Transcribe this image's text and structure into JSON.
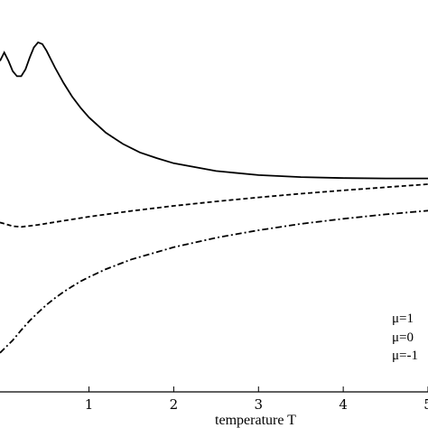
{
  "chart_data": {
    "type": "line",
    "title": "",
    "xlabel": "temperature T",
    "ylabel": "",
    "xlim": [
      -0.05,
      5.0
    ],
    "ylim": [
      0,
      1
    ],
    "x_ticks": [
      1,
      2,
      3,
      4,
      5
    ],
    "x_tick_labels": [
      "1",
      "2",
      "3",
      "4",
      "5"
    ],
    "grid": false,
    "legend_position": "bottom-right",
    "series": [
      {
        "name": "μ=1",
        "style": "solid",
        "points": [
          [
            -0.05,
            0.9
          ],
          [
            0.0,
            0.925
          ],
          [
            0.05,
            0.9
          ],
          [
            0.1,
            0.87
          ],
          [
            0.15,
            0.855
          ],
          [
            0.2,
            0.855
          ],
          [
            0.25,
            0.875
          ],
          [
            0.3,
            0.91
          ],
          [
            0.35,
            0.94
          ],
          [
            0.4,
            0.955
          ],
          [
            0.45,
            0.95
          ],
          [
            0.5,
            0.93
          ],
          [
            0.6,
            0.88
          ],
          [
            0.7,
            0.835
          ],
          [
            0.8,
            0.795
          ],
          [
            0.9,
            0.762
          ],
          [
            1.0,
            0.733
          ],
          [
            1.2,
            0.688
          ],
          [
            1.4,
            0.655
          ],
          [
            1.6,
            0.63
          ],
          [
            1.8,
            0.613
          ],
          [
            2.0,
            0.598
          ],
          [
            2.5,
            0.575
          ],
          [
            3.0,
            0.563
          ],
          [
            3.5,
            0.557
          ],
          [
            4.0,
            0.554
          ],
          [
            4.5,
            0.553
          ],
          [
            5.0,
            0.553
          ]
        ]
      },
      {
        "name": "μ=0",
        "style": "dashed",
        "points": [
          [
            -0.05,
            0.423
          ],
          [
            0.1,
            0.412
          ],
          [
            0.2,
            0.41
          ],
          [
            0.4,
            0.416
          ],
          [
            0.6,
            0.424
          ],
          [
            0.8,
            0.432
          ],
          [
            1.0,
            0.44
          ],
          [
            1.5,
            0.457
          ],
          [
            2.0,
            0.472
          ],
          [
            2.5,
            0.485
          ],
          [
            3.0,
            0.497
          ],
          [
            3.5,
            0.508
          ],
          [
            4.0,
            0.518
          ],
          [
            4.5,
            0.527
          ],
          [
            5.0,
            0.536
          ]
        ]
      },
      {
        "name": "μ=-1",
        "style": "dashdot",
        "points": [
          [
            -0.05,
            0.038
          ],
          [
            0.1,
            0.075
          ],
          [
            0.2,
            0.105
          ],
          [
            0.3,
            0.133
          ],
          [
            0.4,
            0.157
          ],
          [
            0.5,
            0.18
          ],
          [
            0.6,
            0.2
          ],
          [
            0.7,
            0.218
          ],
          [
            0.8,
            0.234
          ],
          [
            0.9,
            0.249
          ],
          [
            1.0,
            0.262
          ],
          [
            1.2,
            0.285
          ],
          [
            1.5,
            0.314
          ],
          [
            2.0,
            0.35
          ],
          [
            2.5,
            0.378
          ],
          [
            3.0,
            0.4
          ],
          [
            3.5,
            0.419
          ],
          [
            4.0,
            0.434
          ],
          [
            4.5,
            0.447
          ],
          [
            5.0,
            0.458
          ]
        ]
      }
    ],
    "legend_entries": [
      "μ=1",
      "μ=0",
      "μ=-1"
    ]
  }
}
